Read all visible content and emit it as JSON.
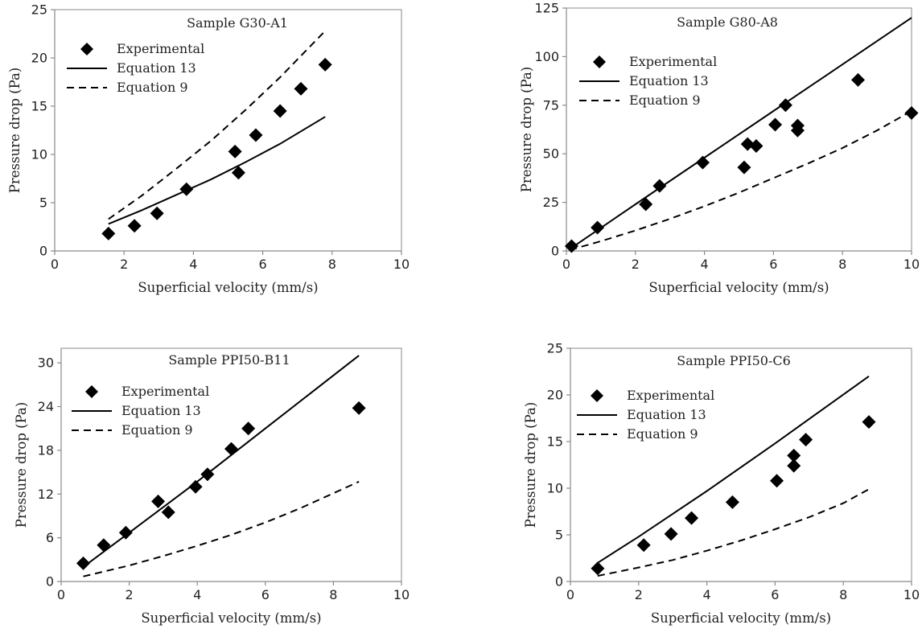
{
  "chart_data": [
    {
      "type": "line",
      "title": "Sample G30-A1",
      "xlabel": "Superficial velocity (mm/s)",
      "ylabel": "Pressure drop (Pa)",
      "xlim": [
        0,
        10
      ],
      "ylim": [
        0,
        25
      ],
      "xticks": [
        "0",
        "2",
        "4",
        "6",
        "8",
        "10"
      ],
      "yticks": [
        "0",
        "5",
        "10",
        "15",
        "20",
        "25"
      ],
      "legend_position": "top-left",
      "series": [
        {
          "name": "Experimental",
          "kind": "marker",
          "x": [
            1.55,
            2.3,
            2.95,
            3.8,
            5.2,
            5.3,
            5.8,
            6.5,
            7.1,
            7.8
          ],
          "y": [
            1.8,
            2.6,
            3.9,
            6.4,
            10.3,
            8.1,
            12.0,
            14.5,
            16.8,
            19.3
          ]
        },
        {
          "name": "Equation 13",
          "kind": "solid",
          "x": [
            1.55,
            2.5,
            3.5,
            4.5,
            5.5,
            6.5,
            7.8
          ],
          "y": [
            2.8,
            4.2,
            5.8,
            7.4,
            9.2,
            11.1,
            13.9
          ]
        },
        {
          "name": "Equation 9",
          "kind": "dashed",
          "x": [
            1.55,
            2.5,
            3.5,
            4.5,
            5.5,
            6.5,
            7.8
          ],
          "y": [
            3.3,
            5.7,
            8.5,
            11.4,
            14.6,
            18.0,
            22.8
          ]
        }
      ]
    },
    {
      "type": "line",
      "title": "Sample G80-A8",
      "xlabel": "Superficial velocity (mm/s)",
      "ylabel": "Pressure drop (Pa)",
      "xlim": [
        0,
        10
      ],
      "ylim": [
        0,
        125
      ],
      "xticks": [
        "0",
        "2",
        "4",
        "6",
        "8",
        "10"
      ],
      "yticks": [
        "0",
        "25",
        "50",
        "75",
        "100",
        "125"
      ],
      "legend_position": "top-left",
      "series": [
        {
          "name": "Experimental",
          "kind": "marker",
          "x": [
            0.15,
            0.9,
            2.3,
            2.7,
            3.95,
            5.15,
            5.25,
            5.5,
            6.05,
            6.35,
            6.7,
            6.7,
            8.45,
            10.0
          ],
          "y": [
            2.5,
            12,
            24,
            33.5,
            45.5,
            43,
            55,
            54,
            65,
            75,
            64.5,
            62,
            88,
            71
          ]
        },
        {
          "name": "Equation 13",
          "kind": "solid",
          "x": [
            0.1,
            2,
            4,
            6,
            8,
            10
          ],
          "y": [
            1,
            24,
            48,
            72,
            96,
            120
          ]
        },
        {
          "name": "Equation 9",
          "kind": "dashed",
          "x": [
            0.1,
            1,
            2,
            3,
            4,
            5,
            6,
            7,
            8,
            9,
            10
          ],
          "y": [
            0.5,
            5,
            10.5,
            16.5,
            23,
            30,
            37.5,
            45,
            53,
            62,
            72
          ]
        }
      ]
    },
    {
      "type": "line",
      "title": "Sample PPI50-B11",
      "xlabel": "Superficial velocity (mm/s)",
      "ylabel": "Pressure drop (Pa)",
      "xlim": [
        0,
        10
      ],
      "ylim": [
        0,
        32
      ],
      "xticks": [
        "0",
        "2",
        "4",
        "6",
        "8",
        "10"
      ],
      "yticks": [
        "0",
        "6",
        "12",
        "18",
        "24",
        "30"
      ],
      "legend_position": "top-left",
      "series": [
        {
          "name": "Experimental",
          "kind": "marker",
          "x": [
            0.65,
            1.25,
            1.9,
            2.85,
            3.15,
            3.95,
            4.3,
            5.0,
            5.5,
            8.75
          ],
          "y": [
            2.5,
            5.0,
            6.7,
            11.0,
            9.5,
            13.0,
            14.7,
            18.2,
            21.0,
            23.8
          ]
        },
        {
          "name": "Equation 13",
          "kind": "solid",
          "x": [
            0.65,
            2,
            4,
            6,
            8.75
          ],
          "y": [
            2.0,
            6.7,
            13.7,
            21.0,
            31.0
          ]
        },
        {
          "name": "Equation 9",
          "kind": "dashed",
          "x": [
            0.65,
            2,
            3,
            4,
            5,
            6,
            7,
            8,
            8.75
          ],
          "y": [
            0.7,
            2.2,
            3.5,
            4.9,
            6.4,
            8.1,
            10.0,
            12.1,
            13.7
          ]
        }
      ]
    },
    {
      "type": "line",
      "title": "Sample PPI50-C6",
      "xlabel": "Superficial velocity (mm/s)",
      "ylabel": "Pressure drop (Pa)",
      "xlim": [
        0,
        10
      ],
      "ylim": [
        0,
        25
      ],
      "xticks": [
        "0",
        "2",
        "4",
        "6",
        "8",
        "10"
      ],
      "yticks": [
        "0",
        "5",
        "10",
        "15",
        "20",
        "25"
      ],
      "legend_position": "top-left",
      "series": [
        {
          "name": "Experimental",
          "kind": "marker",
          "x": [
            0.8,
            2.15,
            2.95,
            3.55,
            4.75,
            6.05,
            6.55,
            6.55,
            6.9,
            8.75
          ],
          "y": [
            1.4,
            3.9,
            5.1,
            6.8,
            8.5,
            10.8,
            13.5,
            12.4,
            15.2,
            17.1
          ]
        },
        {
          "name": "Equation 13",
          "kind": "solid",
          "x": [
            0.8,
            2,
            4,
            6,
            8.75
          ],
          "y": [
            2.0,
            4.8,
            9.7,
            14.8,
            22.0
          ]
        },
        {
          "name": "Equation 9",
          "kind": "dashed",
          "x": [
            0.8,
            2,
            3,
            4,
            5,
            6,
            7,
            8,
            8.75
          ],
          "y": [
            0.6,
            1.5,
            2.3,
            3.3,
            4.4,
            5.6,
            6.9,
            8.4,
            9.9
          ]
        }
      ]
    }
  ]
}
